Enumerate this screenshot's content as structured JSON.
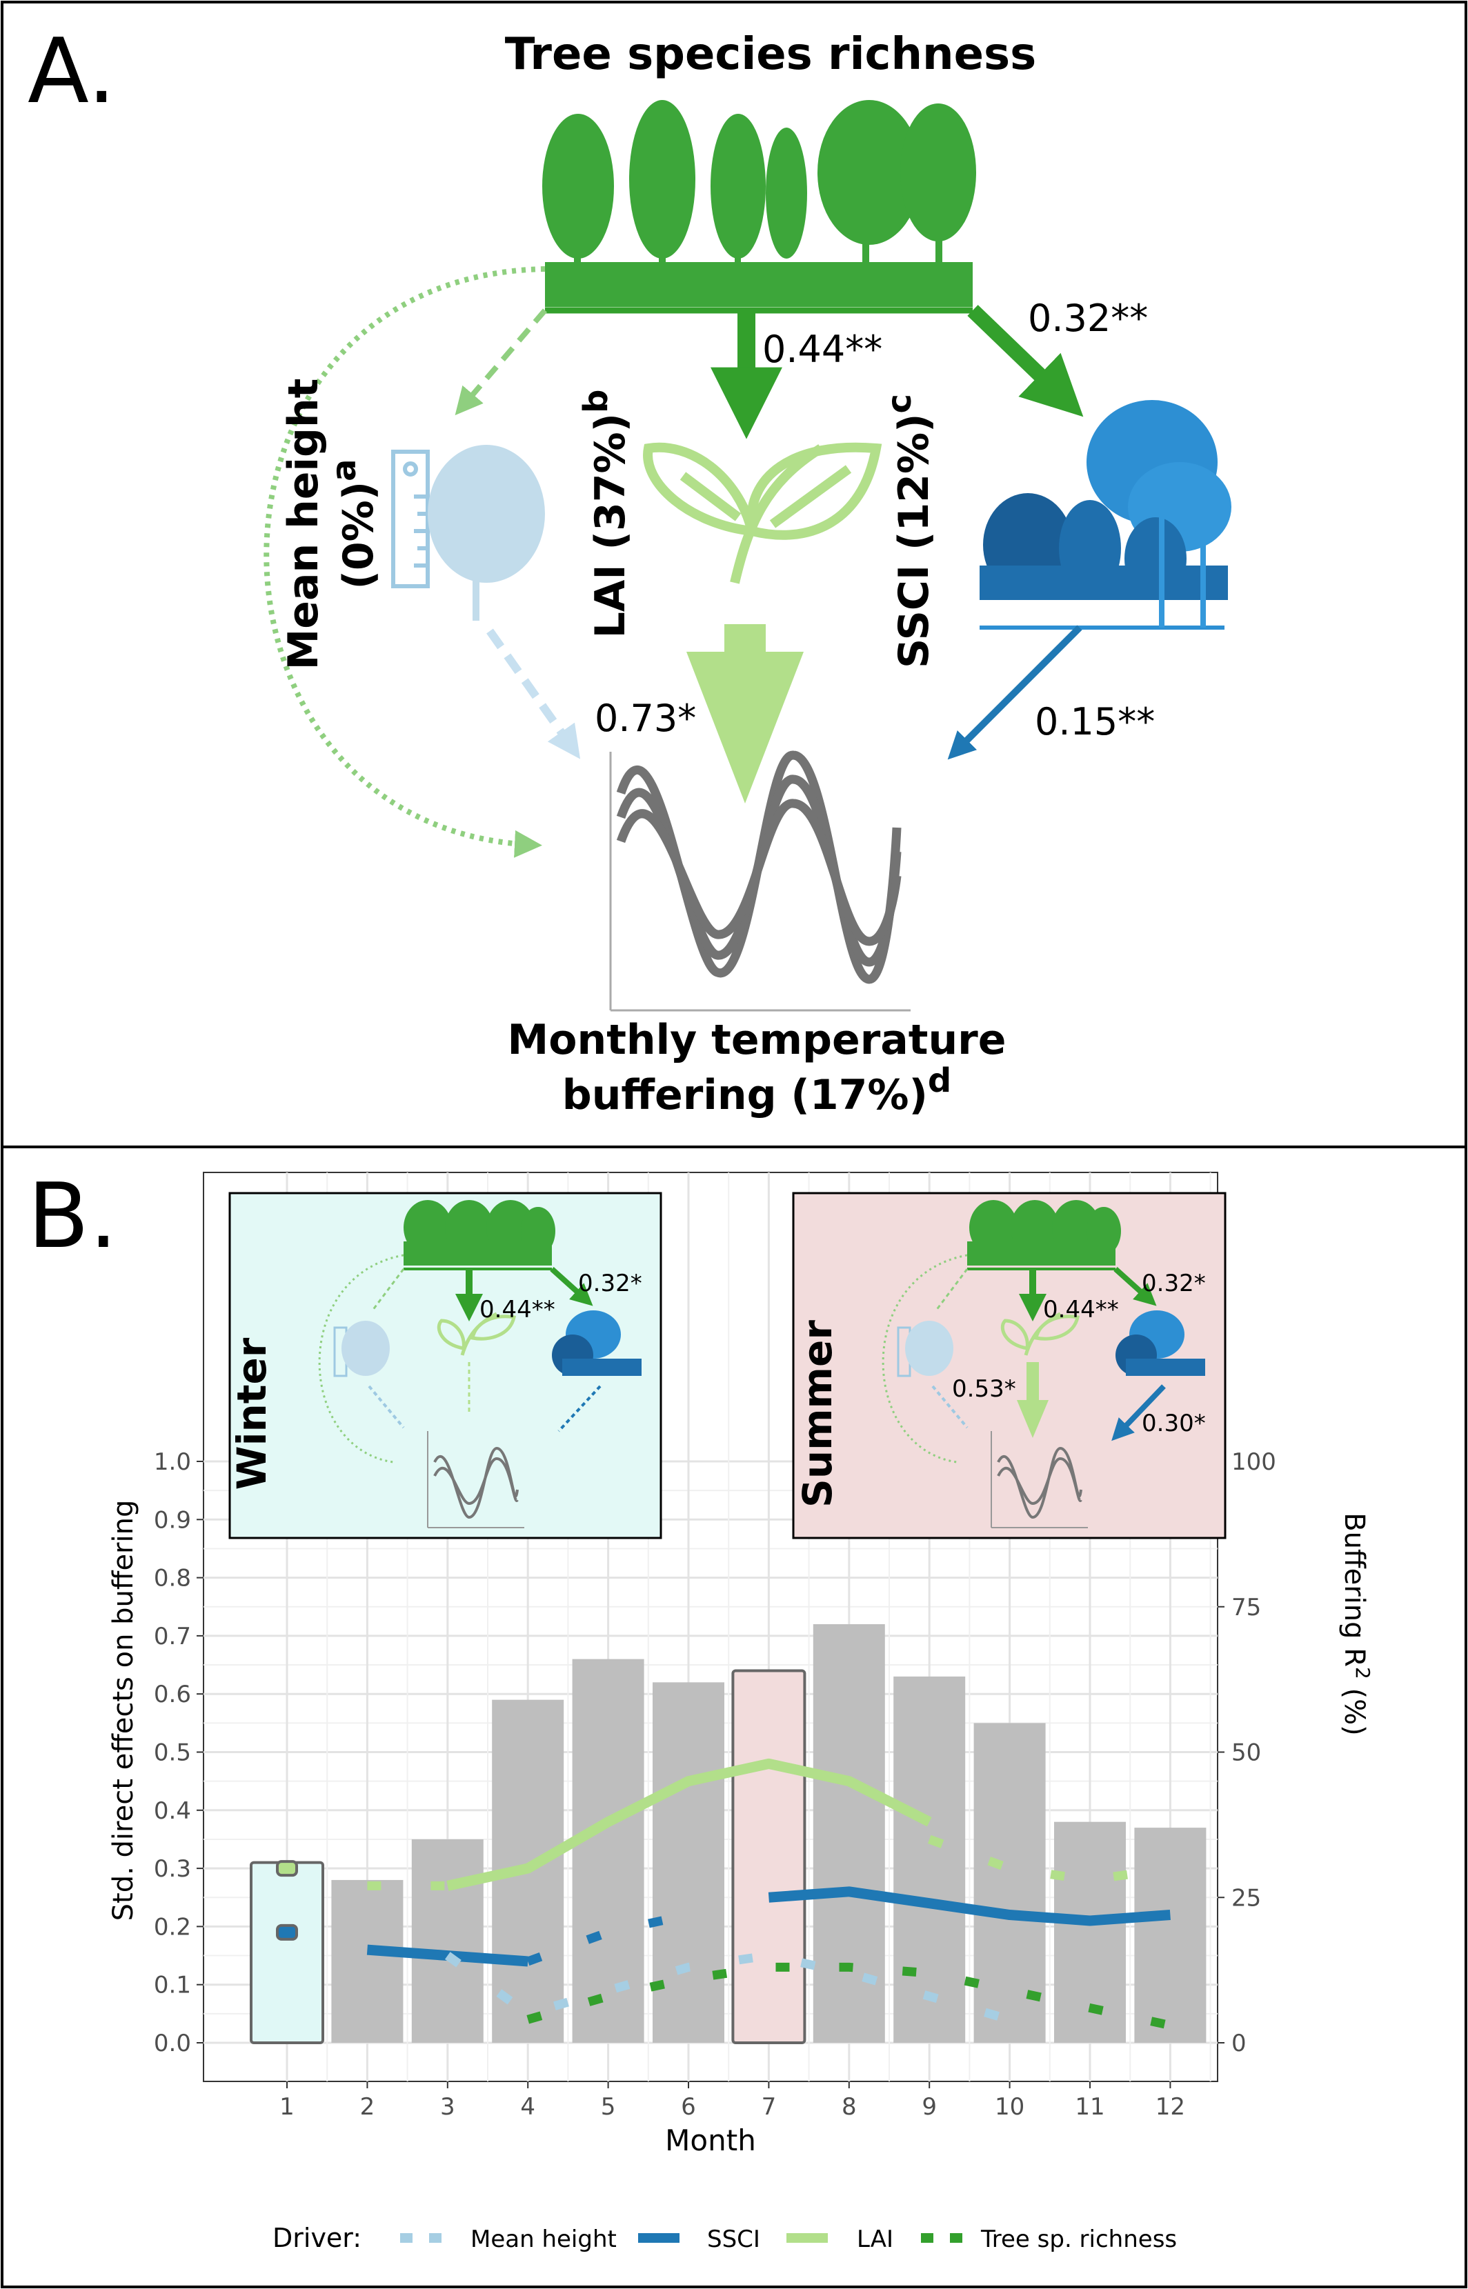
{
  "panel_a": {
    "label": "A.",
    "title": "Tree species richness",
    "coef_top_lai": "0.44**",
    "coef_top_ssci": "0.32**",
    "coef_lai_buffer": "0.73*",
    "coef_ssci_buffer": "0.15**",
    "mean_height_line1": "Mean height",
    "mean_height_line2": "(0%)",
    "mean_height_sup": "a",
    "lai_label": "LAI (37%)",
    "lai_sup": "b",
    "ssci_label": "SSCI (12%)",
    "ssci_sup": "c",
    "outcome_line1": "Monthly temperature",
    "outcome_line2": "buffering (17%)",
    "outcome_sup": "d"
  },
  "panel_b": {
    "label": "B.",
    "inset_winter": {
      "season": "Winter",
      "coef_lai": "0.44**",
      "coef_ssci": "0.32*"
    },
    "inset_summer": {
      "season": "Summer",
      "coef_lai": "0.44**",
      "coef_ssci": "0.32*",
      "coef_lai_buffer": "0.53*",
      "coef_ssci_buffer": "0.30*"
    },
    "legend": {
      "title": "Driver:",
      "items": [
        {
          "name": "Mean height",
          "color": "#a6cee3",
          "style": "dashed"
        },
        {
          "name": "SSCI",
          "color": "#1f78b4",
          "style": "solid"
        },
        {
          "name": "LAI",
          "color": "#b2df8a",
          "style": "solid"
        },
        {
          "name": "Tree sp. richness",
          "color": "#33a02c",
          "style": "dashed"
        }
      ]
    }
  },
  "chart_data": {
    "type": "bar",
    "xlabel": "Month",
    "ylabel": "Std. direct effects on buffering",
    "y2label": "Buffering R",
    "y2label_sup": "2",
    "y2label_suffix": " (%)",
    "categories": [
      "1",
      "2",
      "3",
      "4",
      "5",
      "6",
      "7",
      "8",
      "9",
      "10",
      "11",
      "12"
    ],
    "ylim": [
      0,
      1.0
    ],
    "yticks": [
      "0.0",
      "0.1",
      "0.2",
      "0.3",
      "0.4",
      "0.5",
      "0.6",
      "0.7",
      "0.8",
      "0.9",
      "1.0"
    ],
    "y2lim": [
      0,
      100
    ],
    "y2ticks": [
      "0",
      "25",
      "50",
      "75",
      "100"
    ],
    "bars": {
      "name": "Buffering R2 (%)",
      "values": [
        31,
        28,
        35,
        59,
        66,
        62,
        64,
        72,
        63,
        55,
        38,
        37
      ]
    },
    "highlight_months": [
      {
        "month": 1,
        "color": "#e0f8f6"
      },
      {
        "month": 7,
        "color": "#f2dcdc"
      }
    ],
    "series": [
      {
        "name": "SSCI",
        "color": "#1f78b4",
        "segments": [
          {
            "style": "point",
            "x": [
              1
            ],
            "y": [
              0.19
            ]
          },
          {
            "style": "solid",
            "x": [
              2,
              3,
              4
            ],
            "y": [
              0.16,
              0.15,
              0.14
            ]
          },
          {
            "style": "dashed",
            "x": [
              4,
              5,
              6
            ],
            "y": [
              0.14,
              0.19,
              0.22
            ]
          },
          {
            "style": "solid",
            "x": [
              7,
              8,
              9,
              10,
              11,
              12
            ],
            "y": [
              0.25,
              0.26,
              0.24,
              0.22,
              0.21,
              0.22
            ]
          }
        ]
      },
      {
        "name": "LAI",
        "color": "#b2df8a",
        "segments": [
          {
            "style": "point",
            "x": [
              1
            ],
            "y": [
              0.3
            ]
          },
          {
            "style": "dashed",
            "x": [
              2,
              3
            ],
            "y": [
              0.27,
              0.27
            ]
          },
          {
            "style": "solid",
            "x": [
              3,
              4,
              5,
              6,
              7,
              8,
              9
            ],
            "y": [
              0.27,
              0.3,
              0.38,
              0.45,
              0.48,
              0.45,
              0.38
            ]
          },
          {
            "style": "dashed",
            "x": [
              9,
              10,
              11,
              12
            ],
            "y": [
              0.35,
              0.3,
              0.28,
              0.3
            ]
          }
        ]
      },
      {
        "name": "Mean height",
        "color": "#a6cee3",
        "segments": [
          {
            "style": "dashed",
            "x": [
              3,
              4,
              5,
              6,
              7,
              8,
              9,
              10
            ],
            "y": [
              0.15,
              0.05,
              0.09,
              0.13,
              0.15,
              0.12,
              0.08,
              0.04
            ]
          }
        ]
      },
      {
        "name": "Tree sp. richness",
        "color": "#33a02c",
        "segments": [
          {
            "style": "dashed",
            "x": [
              4,
              5,
              6,
              7,
              8,
              9,
              10,
              11,
              12
            ],
            "y": [
              0.04,
              0.08,
              0.11,
              0.13,
              0.13,
              0.12,
              0.09,
              0.06,
              0.03
            ]
          }
        ]
      }
    ]
  }
}
